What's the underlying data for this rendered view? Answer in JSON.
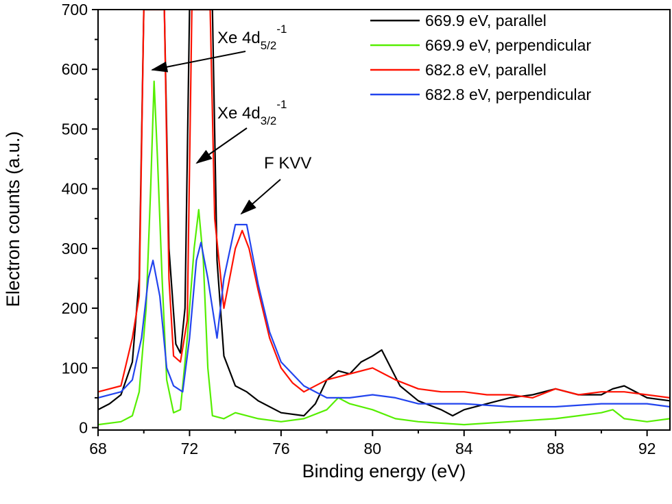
{
  "chart_data": {
    "type": "line",
    "xlabel": "Binding energy (eV)",
    "ylabel": "Electron counts (a.u.)",
    "xlim": [
      68,
      93
    ],
    "ylim": [
      0,
      700
    ],
    "xticks": [
      68,
      72,
      76,
      80,
      84,
      88,
      92
    ],
    "yticks": [
      0,
      100,
      200,
      300,
      400,
      500,
      600,
      700
    ],
    "grid": false,
    "legend_position": "top-right",
    "annotations": [
      {
        "text": "Xe 4d",
        "sub": "5/2",
        "sup": "-1",
        "points_to": [
          70.4,
          600
        ]
      },
      {
        "text": "Xe 4d",
        "sub": "3/2",
        "sup": "-1",
        "points_to": [
          72.4,
          445
        ]
      },
      {
        "text": "F KVV",
        "points_to": [
          74.2,
          360
        ]
      }
    ],
    "series": [
      {
        "name": "669.9 eV, parallel",
        "color": "#000000",
        "points": [
          [
            68,
            30
          ],
          [
            68.5,
            40
          ],
          [
            69,
            55
          ],
          [
            69.5,
            110
          ],
          [
            69.8,
            250
          ],
          [
            70.0,
            700
          ],
          [
            70.9,
            700
          ],
          [
            71.1,
            300
          ],
          [
            71.4,
            140
          ],
          [
            71.6,
            125
          ],
          [
            71.8,
            200
          ],
          [
            72.0,
            700
          ],
          [
            73.0,
            700
          ],
          [
            73.2,
            280
          ],
          [
            73.5,
            120
          ],
          [
            74,
            70
          ],
          [
            74.5,
            60
          ],
          [
            75,
            45
          ],
          [
            76,
            25
          ],
          [
            77,
            20
          ],
          [
            77.5,
            40
          ],
          [
            78,
            80
          ],
          [
            78.5,
            95
          ],
          [
            79,
            90
          ],
          [
            79.5,
            110
          ],
          [
            80,
            120
          ],
          [
            80.4,
            130
          ],
          [
            80.8,
            100
          ],
          [
            81.2,
            70
          ],
          [
            82,
            45
          ],
          [
            83,
            30
          ],
          [
            83.5,
            20
          ],
          [
            84,
            30
          ],
          [
            85,
            40
          ],
          [
            86,
            50
          ],
          [
            87,
            55
          ],
          [
            88,
            65
          ],
          [
            89,
            55
          ],
          [
            90,
            55
          ],
          [
            90.5,
            65
          ],
          [
            91,
            70
          ],
          [
            92,
            50
          ],
          [
            93,
            45
          ]
        ]
      },
      {
        "name": "669.9 eV, perpendicular",
        "color": "#55ee00",
        "points": [
          [
            68,
            5
          ],
          [
            69,
            10
          ],
          [
            69.5,
            20
          ],
          [
            69.8,
            60
          ],
          [
            70.1,
            200
          ],
          [
            70.3,
            400
          ],
          [
            70.45,
            580
          ],
          [
            70.6,
            450
          ],
          [
            70.8,
            250
          ],
          [
            71.0,
            80
          ],
          [
            71.3,
            25
          ],
          [
            71.6,
            30
          ],
          [
            71.9,
            150
          ],
          [
            72.2,
            300
          ],
          [
            72.4,
            365
          ],
          [
            72.6,
            280
          ],
          [
            72.8,
            100
          ],
          [
            73,
            20
          ],
          [
            73.5,
            15
          ],
          [
            74,
            25
          ],
          [
            75,
            15
          ],
          [
            76,
            10
          ],
          [
            77,
            15
          ],
          [
            78,
            30
          ],
          [
            78.5,
            50
          ],
          [
            79,
            40
          ],
          [
            80,
            30
          ],
          [
            81,
            15
          ],
          [
            82,
            10
          ],
          [
            84,
            5
          ],
          [
            86,
            10
          ],
          [
            88,
            15
          ],
          [
            89,
            20
          ],
          [
            90,
            25
          ],
          [
            90.5,
            30
          ],
          [
            91,
            15
          ],
          [
            92,
            10
          ],
          [
            93,
            15
          ]
        ]
      },
      {
        "name": "682.8 eV, parallel",
        "color": "#ff1100",
        "points": [
          [
            68,
            60
          ],
          [
            69,
            70
          ],
          [
            69.5,
            150
          ],
          [
            69.8,
            220
          ],
          [
            70.0,
            700
          ],
          [
            70.9,
            700
          ],
          [
            71.1,
            250
          ],
          [
            71.3,
            120
          ],
          [
            71.6,
            110
          ],
          [
            71.9,
            180
          ],
          [
            72.1,
            700
          ],
          [
            72.9,
            700
          ],
          [
            73.1,
            350
          ],
          [
            73.5,
            200
          ],
          [
            74,
            300
          ],
          [
            74.3,
            330
          ],
          [
            74.6,
            300
          ],
          [
            75,
            230
          ],
          [
            75.5,
            150
          ],
          [
            76,
            100
          ],
          [
            76.5,
            75
          ],
          [
            77,
            60
          ],
          [
            78,
            80
          ],
          [
            79,
            90
          ],
          [
            80,
            100
          ],
          [
            80.5,
            90
          ],
          [
            81,
            80
          ],
          [
            82,
            65
          ],
          [
            83,
            60
          ],
          [
            84,
            60
          ],
          [
            85,
            55
          ],
          [
            86,
            55
          ],
          [
            87,
            50
          ],
          [
            88,
            65
          ],
          [
            89,
            55
          ],
          [
            90,
            60
          ],
          [
            91,
            60
          ],
          [
            92,
            55
          ],
          [
            93,
            50
          ]
        ]
      },
      {
        "name": "682.8 eV, perpendicular",
        "color": "#2244ee",
        "points": [
          [
            68,
            50
          ],
          [
            69,
            60
          ],
          [
            69.5,
            80
          ],
          [
            69.9,
            150
          ],
          [
            70.2,
            250
          ],
          [
            70.4,
            280
          ],
          [
            70.7,
            220
          ],
          [
            71.0,
            100
          ],
          [
            71.3,
            70
          ],
          [
            71.7,
            60
          ],
          [
            72.0,
            150
          ],
          [
            72.3,
            280
          ],
          [
            72.5,
            310
          ],
          [
            72.8,
            250
          ],
          [
            73.2,
            150
          ],
          [
            73.5,
            250
          ],
          [
            74,
            340
          ],
          [
            74.5,
            340
          ],
          [
            75,
            240
          ],
          [
            75.5,
            160
          ],
          [
            76,
            110
          ],
          [
            77,
            70
          ],
          [
            78,
            50
          ],
          [
            79,
            50
          ],
          [
            80,
            55
          ],
          [
            81,
            50
          ],
          [
            82,
            40
          ],
          [
            84,
            40
          ],
          [
            86,
            35
          ],
          [
            88,
            35
          ],
          [
            90,
            40
          ],
          [
            92,
            40
          ],
          [
            93,
            35
          ]
        ]
      }
    ]
  }
}
